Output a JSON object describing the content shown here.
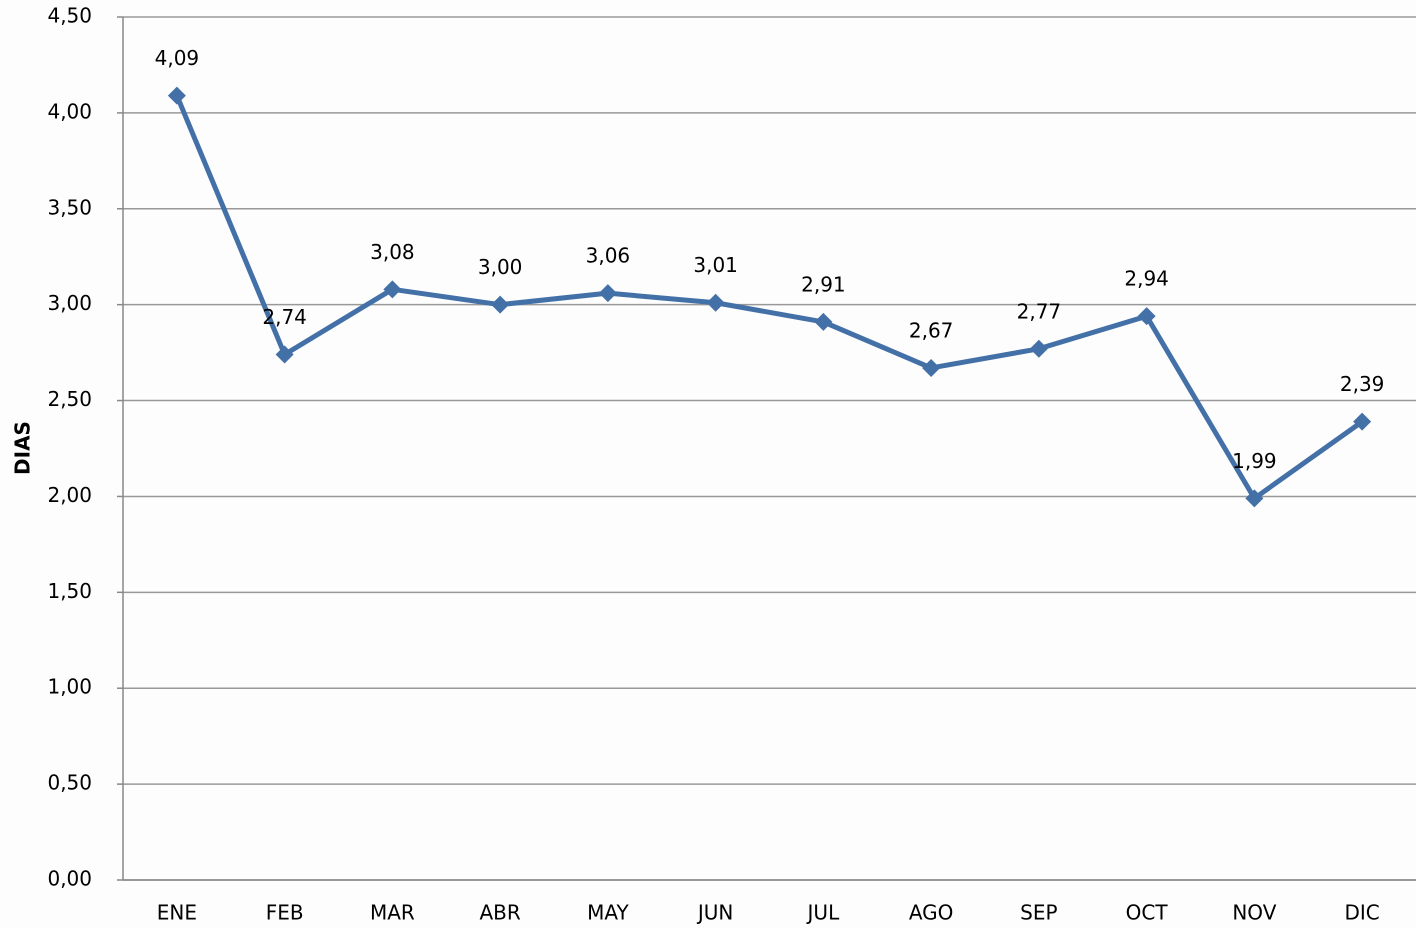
{
  "chart_data": {
    "type": "line",
    "ylabel": "DIAS",
    "categories": [
      "ENE",
      "FEB",
      "MAR",
      "ABR",
      "MAY",
      "JUN",
      "JUL",
      "AGO",
      "SEP",
      "OCT",
      "NOV",
      "DIC"
    ],
    "values": [
      4.09,
      2.74,
      3.08,
      3.0,
      3.06,
      3.01,
      2.91,
      2.67,
      2.77,
      2.94,
      1.99,
      2.39
    ],
    "value_labels": [
      "4,09",
      "2,74",
      "3,08",
      "3,00",
      "3,06",
      "3,01",
      "2,91",
      "2,67",
      "2,77",
      "2,94",
      "1,99",
      "2,39"
    ],
    "color": "#4470a8",
    "ylim": [
      0,
      4.5
    ],
    "yticks": [
      {
        "value": 0,
        "label": "0,00"
      },
      {
        "value": 0.5,
        "label": "0,50"
      },
      {
        "value": 1,
        "label": "1,00"
      },
      {
        "value": 1.5,
        "label": "1,50"
      },
      {
        "value": 2,
        "label": "2,00"
      },
      {
        "value": 2.5,
        "label": "2,50"
      },
      {
        "value": 3,
        "label": "3,00"
      },
      {
        "value": 3.5,
        "label": "3,50"
      },
      {
        "value": 4,
        "label": "4,00"
      },
      {
        "value": 4.5,
        "label": "4,50"
      }
    ],
    "grid": true
  }
}
